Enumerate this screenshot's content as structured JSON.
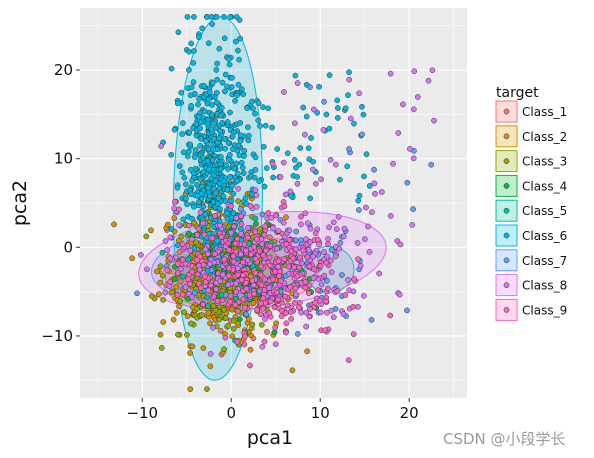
{
  "chart_data": {
    "type": "scatter",
    "xlabel": "pca1",
    "ylabel": "pca2",
    "xlim": [
      -17,
      26.5
    ],
    "ylim": [
      -17,
      27
    ],
    "x_ticks": [
      "-10",
      "0",
      "10",
      "20"
    ],
    "y_ticks": [
      "-10",
      "0",
      "10",
      "20"
    ],
    "x_tick_values": [
      -10,
      0,
      10,
      20
    ],
    "y_tick_values": [
      -10,
      0,
      10,
      20
    ],
    "grid": true,
    "panel_background": "#EBEBEB",
    "legend": {
      "title": "target",
      "position": "right"
    },
    "series": [
      {
        "name": "Class_1",
        "color": "#F8766D",
        "center": [
          0,
          -3
        ],
        "spread": [
          3.5,
          3.5
        ],
        "n": 60,
        "ellipse": {
          "cx": -0.5,
          "cy": -3,
          "rx": 6.2,
          "ry": 3.6,
          "angle": -8
        }
      },
      {
        "name": "Class_2",
        "color": "#D39200",
        "center": [
          -1,
          -3
        ],
        "spread": [
          3.5,
          4
        ],
        "n": 320,
        "ellipse": {
          "cx": -1,
          "cy": -3,
          "rx": 6.8,
          "ry": 4.2,
          "angle": -5
        }
      },
      {
        "name": "Class_3",
        "color": "#93AA00",
        "center": [
          -1,
          -3
        ],
        "spread": [
          3,
          3.5
        ],
        "n": 200,
        "ellipse": {
          "cx": -1,
          "cy": -3,
          "rx": 6.4,
          "ry": 3.8,
          "angle": -5
        }
      },
      {
        "name": "Class_4",
        "color": "#00BA38",
        "center": [
          2,
          -3
        ],
        "spread": [
          4,
          3.5
        ],
        "n": 60,
        "ellipse": {
          "cx": 1,
          "cy": -2.5,
          "rx": 7,
          "ry": 3.6,
          "angle": -6
        }
      },
      {
        "name": "Class_5",
        "color": "#00C19F",
        "center": [
          1,
          -2
        ],
        "spread": [
          3,
          3
        ],
        "n": 60,
        "ellipse": {
          "cx": 11,
          "cy": -2.5,
          "rx": 2.8,
          "ry": 2.6,
          "angle": 0
        }
      },
      {
        "name": "Class_6",
        "color": "#00B9E3",
        "center": [
          -2,
          5
        ],
        "spread": [
          1.8,
          9
        ],
        "n": 600,
        "ellipse": {
          "cx": -1.5,
          "cy": 5.5,
          "rx": 5,
          "ry": 20.5,
          "angle": 1
        }
      },
      {
        "name": "Class_7",
        "color": "#619CFF",
        "center": [
          6,
          -2
        ],
        "spread": [
          5,
          3
        ],
        "n": 100,
        "ellipse": {
          "cx": 0,
          "cy": -2,
          "rx": 9,
          "ry": 4,
          "angle": -6
        }
      },
      {
        "name": "Class_8",
        "color": "#DB72FB",
        "center": [
          4,
          -2
        ],
        "spread": [
          6,
          3.5
        ],
        "n": 300,
        "ellipse": {
          "cx": 3.5,
          "cy": -1.5,
          "rx": 14,
          "ry": 5.3,
          "angle": -7
        }
      },
      {
        "name": "Class_9",
        "color": "#FF61C3",
        "center": [
          3,
          -3
        ],
        "spread": [
          4.5,
          3.5
        ],
        "n": 280,
        "ellipse": {
          "cx": 2,
          "cy": -3,
          "rx": 8,
          "ry": 4,
          "angle": -7
        }
      }
    ]
  },
  "watermark": "CSDN @小段学长"
}
